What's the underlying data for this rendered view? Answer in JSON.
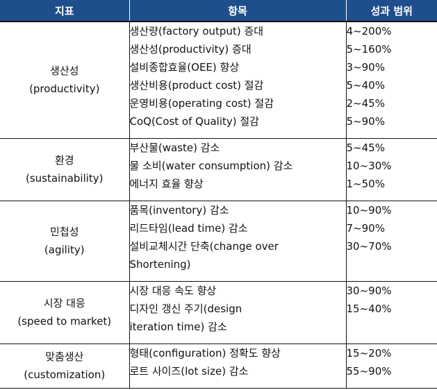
{
  "header": {
    "col1": "지표",
    "col2": "항목",
    "col3": "성과 범위"
  },
  "rows": [
    {
      "name": "생산성",
      "sub": "(productivity)",
      "items": [
        "생산량(factory output) 증대",
        "생산성(productivity) 증대",
        "설비종합효율(OEE) 향상",
        "생산비용(product cost) 절감",
        "운영비용(operating cost) 절감",
        "CoQ(Cost of Quality) 절감"
      ],
      "ranges": [
        "4~200%",
        "5~160%",
        "3~90%",
        "5~40%",
        "2~45%",
        "5~90%"
      ]
    },
    {
      "name": "환경",
      "sub": "(sustainability)",
      "items": [
        "부산물(waste) 감소",
        "물 소비(water consumption) 감소",
        "에너지 효율 향상"
      ],
      "ranges": [
        "5~45%",
        "10~30%",
        "1~50%"
      ]
    },
    {
      "name": "민첩성",
      "sub": "(agility)",
      "items": [
        "품목(inventory) 감소",
        "리드타임(lead time) 감소",
        "설비교체시간 단축(change over",
        "Shortening)"
      ],
      "ranges": [
        "10~90%",
        "7~90%",
        "30~70%"
      ]
    },
    {
      "name": "시장 대응",
      "sub": "(speed to market)",
      "items": [
        "시장 대응 속도 향상",
        "디자인 갱신 주기(design",
        "iteration time) 감소"
      ],
      "ranges": [
        "30~90%",
        "15~40%"
      ]
    },
    {
      "name": "맞춤생산",
      "sub": "(customization)",
      "items": [
        "형태(configuration) 정확도 향상",
        "로트 사이즈(lot size) 감소"
      ],
      "ranges": [
        "15~20%",
        "55~90%"
      ]
    }
  ]
}
